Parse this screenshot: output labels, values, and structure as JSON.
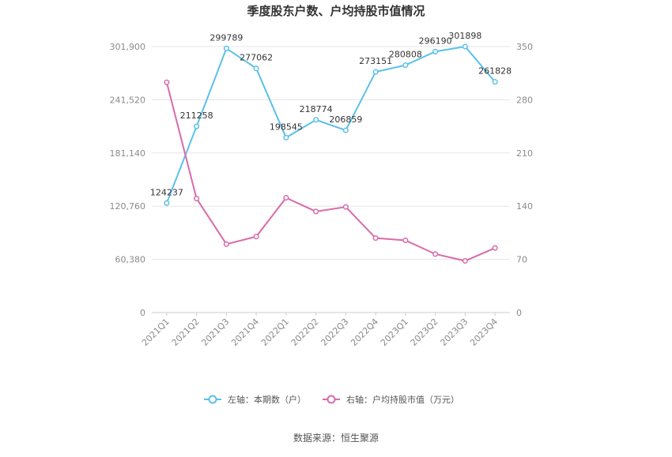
{
  "chart_data": {
    "type": "line",
    "title": "季度股东户数、户均持股市值情况",
    "categories": [
      "2021Q1",
      "2021Q2",
      "2021Q3",
      "2021Q4",
      "2022Q1",
      "2022Q2",
      "2022Q3",
      "2022Q4",
      "2023Q1",
      "2023Q2",
      "2023Q3",
      "2023Q4"
    ],
    "left_axis": {
      "min": 0,
      "max": 301900,
      "ticks": [
        0,
        60380,
        120760,
        181140,
        241520,
        301900
      ],
      "tick_labels": [
        "0",
        "60,380",
        "120,760",
        "181,140",
        "241,520",
        "301,900"
      ]
    },
    "right_axis": {
      "min": 0,
      "max": 350,
      "ticks": [
        0,
        70,
        140,
        210,
        280,
        350
      ],
      "tick_labels": [
        "0",
        "70",
        "140",
        "210",
        "280",
        "350"
      ]
    },
    "grid": true,
    "legend_position": "bottom",
    "series": [
      {
        "name": "左轴：本期数（户）",
        "axis": "left",
        "color": "#5bc0ea",
        "values": [
          124237,
          211258,
          299789,
          277062,
          198545,
          218774,
          206859,
          273151,
          280808,
          296190,
          301898,
          261828
        ],
        "labels": [
          "124237",
          "211258",
          "299789",
          "277062",
          "198545",
          "218774",
          "206859",
          "273151",
          "280808",
          "296190",
          "301898",
          "261828"
        ]
      },
      {
        "name": "右轴：户均持股市值（万元）",
        "axis": "right",
        "color": "#d96aaa",
        "values": [
          303,
          150,
          90,
          100,
          151,
          133,
          139,
          98,
          95,
          77,
          68,
          85
        ]
      }
    ]
  },
  "source_text": "数据来源：恒生聚源"
}
